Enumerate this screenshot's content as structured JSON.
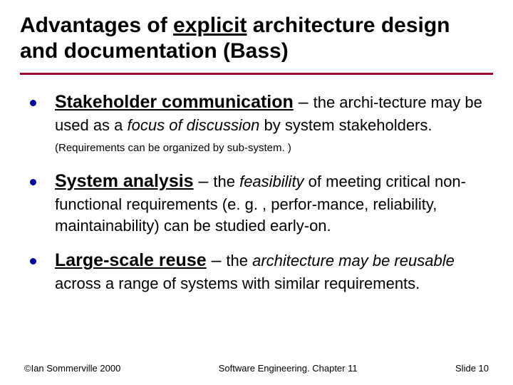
{
  "title": {
    "pre": "Advantages of ",
    "underlined": "explicit",
    "post": " architecture design and documentation (Bass)"
  },
  "bullets": [
    {
      "term": "Stakeholder communication",
      "dash": " – ",
      "body_html": "the archi-tecture may be used as a <span class='italic'>focus of discussion</span> by system stakeholders. <span class='paren'>(Requirements can be organized by sub-system. )</span>"
    },
    {
      "term": "System analysis",
      "dash": " – ",
      "body_html": "the <span class='italic'>feasibility</span> of meeting critical non-functional requirements (e. g. , perfor-mance, reliability, maintainability) can be studied early-on."
    },
    {
      "term": "Large-scale reuse",
      "dash": " – ",
      "body_html": "the <span class='italic'>architecture may be reusable</span> across a range of systems with similar requirements."
    }
  ],
  "footer": {
    "left": "©Ian Sommerville 2000",
    "center": "Software Engineering. Chapter 11",
    "right": "Slide 10"
  },
  "colors": {
    "divider": "#990033",
    "bullet": "#000099",
    "text": "#000000",
    "background": "#ffffff"
  }
}
